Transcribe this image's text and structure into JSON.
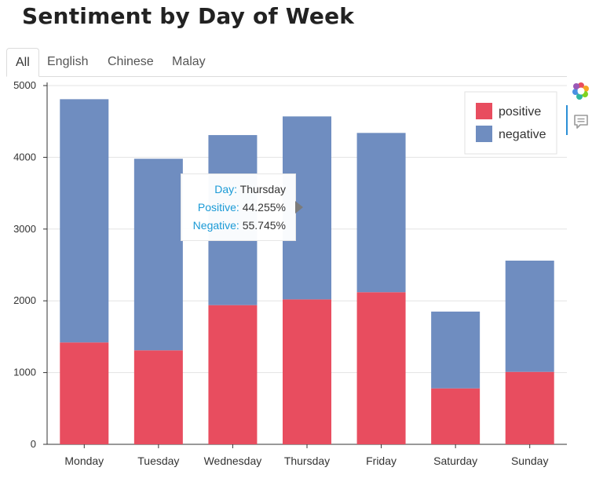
{
  "page": {
    "title": "Sentiment by Day of Week"
  },
  "tabs": [
    {
      "label": "All",
      "active": true
    },
    {
      "label": "English",
      "active": false
    },
    {
      "label": "Chinese",
      "active": false
    },
    {
      "label": "Malay",
      "active": false
    }
  ],
  "tooltip": {
    "day_key": "Day:",
    "day_val": "Thursday",
    "pos_key": "Positive:",
    "pos_val": "44.255%",
    "neg_key": "Negative:",
    "neg_val": "55.745%"
  },
  "toolbar": {
    "icons": [
      "color-wheel-icon",
      "comment-icon"
    ]
  },
  "chart_data": {
    "type": "bar",
    "stacked": true,
    "categories": [
      "Monday",
      "Tuesday",
      "Wednesday",
      "Thursday",
      "Friday",
      "Saturday",
      "Sunday"
    ],
    "series": [
      {
        "name": "positive",
        "color": "#e84d5f",
        "values": [
          1420,
          1310,
          1940,
          2020,
          2120,
          780,
          1010
        ]
      },
      {
        "name": "negative",
        "color": "#6f8dc0",
        "values": [
          3390,
          2670,
          2370,
          2550,
          2220,
          1070,
          1550
        ]
      }
    ],
    "yticks": [
      "0",
      "1000",
      "2000",
      "3000",
      "4000",
      "5000"
    ],
    "ylim": [
      0,
      5000
    ],
    "grid": true,
    "legend_position": "top-right"
  }
}
